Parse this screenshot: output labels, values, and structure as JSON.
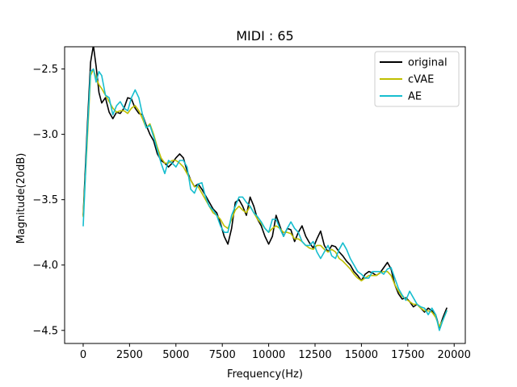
{
  "chart_data": {
    "type": "line",
    "title": "MIDI : 65",
    "xlabel": "Frequency(Hz)",
    "ylabel": "Magnitude(20dB)",
    "xlim": [
      -1000,
      20600
    ],
    "ylim": [
      -4.6,
      -2.33
    ],
    "xticks": [
      0,
      2500,
      5000,
      7500,
      10000,
      12500,
      15000,
      17500,
      20000
    ],
    "xtick_labels": [
      "0",
      "2500",
      "5000",
      "7500",
      "10000",
      "12500",
      "15000",
      "17500",
      "20000"
    ],
    "yticks": [
      -4.5,
      -4.0,
      -3.5,
      -3.0,
      -2.5
    ],
    "ytick_labels": [
      "−4.5",
      "−4.0",
      "−3.5",
      "−3.0",
      "−2.5"
    ],
    "grid": false,
    "legend_position": "top-right",
    "series": [
      {
        "name": "original",
        "color": "#000000",
        "x": [
          0,
          200,
          400,
          550,
          700,
          850,
          1000,
          1200,
          1400,
          1600,
          1800,
          2000,
          2200,
          2400,
          2600,
          2800,
          3000,
          3200,
          3400,
          3600,
          3800,
          4000,
          4200,
          4400,
          4600,
          4800,
          5000,
          5200,
          5400,
          5600,
          5800,
          6000,
          6200,
          6400,
          6600,
          6800,
          7000,
          7200,
          7400,
          7600,
          7800,
          8000,
          8200,
          8400,
          8600,
          8800,
          9000,
          9200,
          9400,
          9600,
          9800,
          10000,
          10200,
          10400,
          10600,
          10800,
          11000,
          11200,
          11400,
          11600,
          11800,
          12000,
          12200,
          12400,
          12600,
          12800,
          13000,
          13200,
          13400,
          13600,
          13800,
          14000,
          14200,
          14400,
          14600,
          14800,
          15000,
          15200,
          15400,
          15600,
          15800,
          16000,
          16200,
          16400,
          16600,
          16800,
          17000,
          17200,
          17400,
          17600,
          17800,
          18000,
          18200,
          18400,
          18600,
          18800,
          19000,
          19200,
          19400,
          19600
        ],
        "y": [
          -3.62,
          -3.0,
          -2.45,
          -2.32,
          -2.48,
          -2.68,
          -2.76,
          -2.72,
          -2.83,
          -2.88,
          -2.83,
          -2.84,
          -2.8,
          -2.72,
          -2.73,
          -2.8,
          -2.84,
          -2.85,
          -2.93,
          -3.0,
          -3.05,
          -3.15,
          -3.2,
          -3.22,
          -3.25,
          -3.22,
          -3.18,
          -3.15,
          -3.18,
          -3.28,
          -3.35,
          -3.4,
          -3.38,
          -3.42,
          -3.47,
          -3.52,
          -3.57,
          -3.6,
          -3.68,
          -3.78,
          -3.84,
          -3.72,
          -3.52,
          -3.5,
          -3.55,
          -3.62,
          -3.48,
          -3.55,
          -3.65,
          -3.7,
          -3.78,
          -3.84,
          -3.78,
          -3.62,
          -3.7,
          -3.78,
          -3.72,
          -3.73,
          -3.82,
          -3.75,
          -3.7,
          -3.78,
          -3.83,
          -3.87,
          -3.8,
          -3.74,
          -3.85,
          -3.9,
          -3.85,
          -3.86,
          -3.9,
          -3.93,
          -3.97,
          -4.0,
          -4.05,
          -4.08,
          -4.12,
          -4.07,
          -4.05,
          -4.06,
          -4.08,
          -4.06,
          -4.02,
          -3.98,
          -4.03,
          -4.15,
          -4.22,
          -4.26,
          -4.25,
          -4.28,
          -4.32,
          -4.3,
          -4.33,
          -4.36,
          -4.33,
          -4.35,
          -4.38,
          -4.48,
          -4.4,
          -4.33
        ]
      },
      {
        "name": "cVAE",
        "color": "#bfbf00",
        "x": [
          0,
          200,
          400,
          550,
          700,
          850,
          1000,
          1200,
          1400,
          1600,
          1800,
          2000,
          2200,
          2400,
          2600,
          2800,
          3000,
          3200,
          3400,
          3600,
          3800,
          4000,
          4200,
          4400,
          4600,
          4800,
          5000,
          5200,
          5400,
          5600,
          5800,
          6000,
          6200,
          6400,
          6600,
          6800,
          7000,
          7200,
          7400,
          7600,
          7800,
          8000,
          8200,
          8400,
          8600,
          8800,
          9000,
          9200,
          9400,
          9600,
          9800,
          10000,
          10200,
          10400,
          10600,
          10800,
          11000,
          11200,
          11400,
          11600,
          11800,
          12000,
          12200,
          12400,
          12600,
          12800,
          13000,
          13200,
          13400,
          13600,
          13800,
          14000,
          14200,
          14400,
          14600,
          14800,
          15000,
          15200,
          15400,
          15600,
          15800,
          16000,
          16200,
          16400,
          16600,
          16800,
          17000,
          17200,
          17400,
          17600,
          17800,
          18000,
          18200,
          18400,
          18600,
          18800,
          19000,
          19200,
          19400,
          19600
        ],
        "y": [
          -3.63,
          -3.1,
          -2.55,
          -2.5,
          -2.57,
          -2.62,
          -2.65,
          -2.7,
          -2.75,
          -2.8,
          -2.83,
          -2.82,
          -2.82,
          -2.84,
          -2.8,
          -2.78,
          -2.82,
          -2.88,
          -2.95,
          -2.92,
          -3.0,
          -3.1,
          -3.18,
          -3.22,
          -3.22,
          -3.2,
          -3.2,
          -3.22,
          -3.25,
          -3.3,
          -3.35,
          -3.4,
          -3.4,
          -3.45,
          -3.5,
          -3.55,
          -3.6,
          -3.62,
          -3.65,
          -3.7,
          -3.72,
          -3.65,
          -3.58,
          -3.55,
          -3.58,
          -3.6,
          -3.55,
          -3.6,
          -3.65,
          -3.68,
          -3.72,
          -3.75,
          -3.72,
          -3.7,
          -3.72,
          -3.75,
          -3.75,
          -3.76,
          -3.8,
          -3.8,
          -3.82,
          -3.85,
          -3.87,
          -3.88,
          -3.85,
          -3.85,
          -3.88,
          -3.9,
          -3.88,
          -3.9,
          -3.95,
          -3.97,
          -4.0,
          -4.03,
          -4.07,
          -4.1,
          -4.12,
          -4.1,
          -4.08,
          -4.08,
          -4.08,
          -4.06,
          -4.05,
          -4.05,
          -4.08,
          -4.15,
          -4.2,
          -4.24,
          -4.26,
          -4.28,
          -4.3,
          -4.3,
          -4.33,
          -4.35,
          -4.35,
          -4.36,
          -4.4,
          -4.47,
          -4.42,
          -4.35
        ]
      },
      {
        "name": "AE",
        "color": "#17becf",
        "x": [
          0,
          200,
          400,
          550,
          700,
          850,
          1000,
          1200,
          1400,
          1600,
          1800,
          2000,
          2200,
          2400,
          2600,
          2800,
          3000,
          3200,
          3400,
          3600,
          3800,
          4000,
          4200,
          4400,
          4600,
          4800,
          5000,
          5200,
          5400,
          5600,
          5800,
          6000,
          6200,
          6400,
          6600,
          6800,
          7000,
          7200,
          7400,
          7600,
          7800,
          8000,
          8200,
          8400,
          8600,
          8800,
          9000,
          9200,
          9400,
          9600,
          9800,
          10000,
          10200,
          10400,
          10600,
          10800,
          11000,
          11200,
          11400,
          11600,
          11800,
          12000,
          12200,
          12400,
          12600,
          12800,
          13000,
          13200,
          13400,
          13600,
          13800,
          14000,
          14200,
          14400,
          14600,
          14800,
          15000,
          15200,
          15400,
          15600,
          15800,
          16000,
          16200,
          16400,
          16600,
          16800,
          17000,
          17200,
          17400,
          17600,
          17800,
          18000,
          18200,
          18400,
          18600,
          18800,
          19000,
          19200,
          19400,
          19600
        ],
        "y": [
          -3.7,
          -3.05,
          -2.52,
          -2.5,
          -2.6,
          -2.52,
          -2.55,
          -2.7,
          -2.72,
          -2.85,
          -2.78,
          -2.75,
          -2.8,
          -2.82,
          -2.72,
          -2.66,
          -2.72,
          -2.85,
          -2.95,
          -2.93,
          -3.02,
          -3.12,
          -3.22,
          -3.3,
          -3.2,
          -3.22,
          -3.25,
          -3.2,
          -3.2,
          -3.25,
          -3.42,
          -3.45,
          -3.38,
          -3.37,
          -3.48,
          -3.55,
          -3.58,
          -3.62,
          -3.7,
          -3.75,
          -3.75,
          -3.62,
          -3.55,
          -3.48,
          -3.48,
          -3.52,
          -3.55,
          -3.6,
          -3.63,
          -3.67,
          -3.72,
          -3.75,
          -3.65,
          -3.65,
          -3.72,
          -3.78,
          -3.72,
          -3.67,
          -3.72,
          -3.75,
          -3.82,
          -3.85,
          -3.85,
          -3.82,
          -3.9,
          -3.95,
          -3.9,
          -3.85,
          -3.93,
          -3.95,
          -3.88,
          -3.83,
          -3.88,
          -3.95,
          -4.0,
          -4.05,
          -4.07,
          -4.1,
          -4.1,
          -4.05,
          -4.05,
          -4.05,
          -4.07,
          -4.03,
          -4.02,
          -4.1,
          -4.18,
          -4.23,
          -4.27,
          -4.2,
          -4.25,
          -4.3,
          -4.32,
          -4.33,
          -4.38,
          -4.33,
          -4.38,
          -4.5,
          -4.42,
          -4.35
        ]
      }
    ]
  }
}
